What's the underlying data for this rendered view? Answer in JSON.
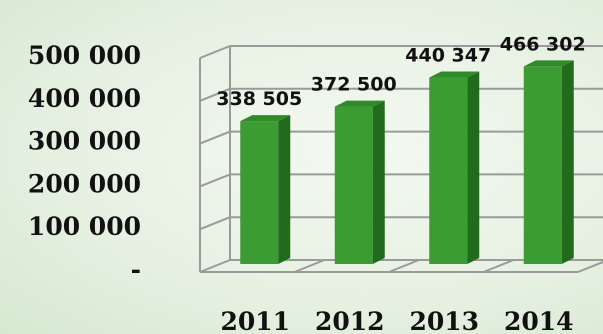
{
  "chart_data": {
    "type": "bar",
    "style": "3d-column",
    "categories": [
      "2011",
      "2012",
      "2013",
      "2014"
    ],
    "values": [
      338505,
      372500,
      440347,
      466302
    ],
    "data_labels": [
      "338 505",
      "372 500",
      "440 347",
      "466 302"
    ],
    "title": "",
    "xlabel": "",
    "ylabel": "",
    "ylim": [
      0,
      500000
    ],
    "yticks": [
      0,
      100000,
      200000,
      300000,
      400000,
      500000
    ],
    "ytick_labels": [
      "-",
      "100 000",
      "200 000",
      "300 000",
      "400 000",
      "500 000"
    ],
    "grid": true,
    "legend": "none",
    "colors": {
      "bar_front": "#3a9c32",
      "bar_side": "#226b1d",
      "bar_top": "#2f8a28",
      "grid": "#9a9a9a"
    }
  }
}
